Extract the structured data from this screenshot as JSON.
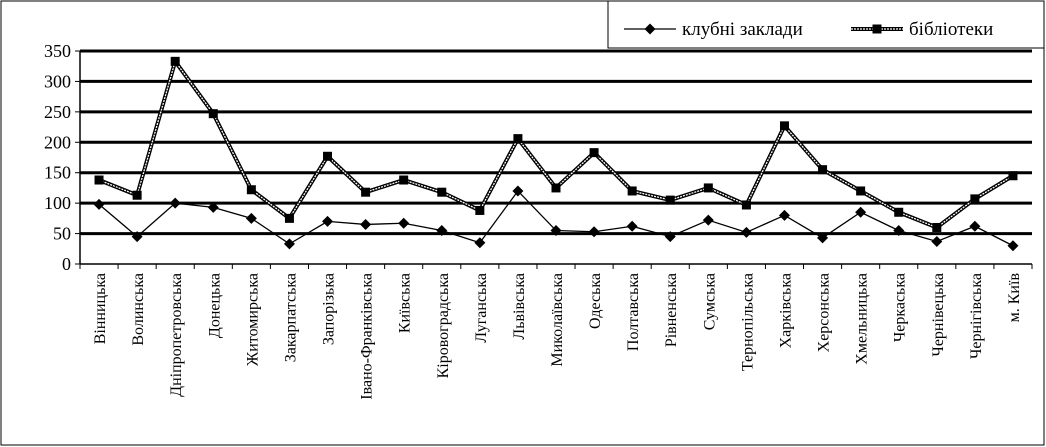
{
  "chart_data": {
    "type": "line",
    "categories": [
      "Вінницька",
      "Волинська",
      "Дніпропетровська",
      "Донецька",
      "Житомирська",
      "Закарпатська",
      "Запорізька",
      "Івано-Франківська",
      "Київська",
      "Кіровоградська",
      "Луганська",
      "Львівська",
      "Миколаївська",
      "Одеська",
      "Полтавська",
      "Рівненська",
      "Сумська",
      "Тернопільська",
      "Харківська",
      "Херсонська",
      "Хмельницька",
      "Черкаська",
      "Чернівецька",
      "Чернігівська",
      "м. Київ"
    ],
    "series": [
      {
        "name": "клубні заклади",
        "marker": "diamond",
        "color": "#000000",
        "values": [
          98,
          45,
          100,
          93,
          75,
          33,
          70,
          65,
          67,
          55,
          35,
          120,
          55,
          53,
          62,
          45,
          72,
          52,
          80,
          43,
          85,
          55,
          37,
          62,
          30
        ]
      },
      {
        "name": "бібліотеки",
        "marker": "square",
        "color": "#000000",
        "values": [
          138,
          113,
          333,
          247,
          122,
          75,
          177,
          118,
          138,
          118,
          88,
          206,
          125,
          183,
          120,
          105,
          125,
          97,
          227,
          155,
          120,
          85,
          60,
          107,
          145
        ]
      }
    ],
    "ylim": [
      0,
      350
    ],
    "yticks": [
      "0",
      "50",
      "100",
      "150",
      "200",
      "250",
      "300",
      "350"
    ],
    "grid": true,
    "legend": "top-right"
  }
}
